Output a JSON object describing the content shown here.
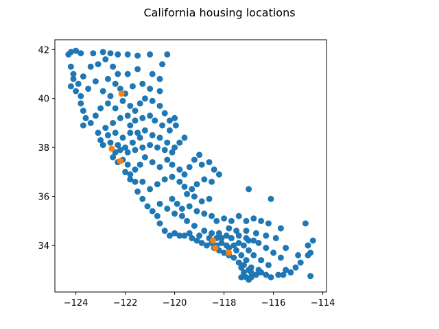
{
  "chart_data": {
    "type": "scatter",
    "title": "California housing locations",
    "xlabel": "",
    "ylabel": "",
    "xlim": [
      -124.85,
      -113.85
    ],
    "ylim": [
      32.1,
      42.4
    ],
    "xticks": [
      -124,
      -122,
      -120,
      -118,
      -116,
      -114
    ],
    "yticks": [
      34,
      36,
      38,
      40,
      42
    ],
    "grid": false,
    "legend": "none",
    "series": [
      {
        "color": "#1f77b4",
        "points": [
          [
            -124.3,
            41.8
          ],
          [
            -124.2,
            41.9
          ],
          [
            -124.0,
            41.95
          ],
          [
            -123.8,
            41.85
          ],
          [
            -123.3,
            41.85
          ],
          [
            -122.9,
            41.9
          ],
          [
            -122.6,
            41.85
          ],
          [
            -122.3,
            41.8
          ],
          [
            -121.9,
            41.8
          ],
          [
            -121.5,
            41.75
          ],
          [
            -121.0,
            41.8
          ],
          [
            -120.3,
            41.8
          ],
          [
            -124.2,
            41.3
          ],
          [
            -124.1,
            41.0
          ],
          [
            -124.1,
            40.8
          ],
          [
            -124.2,
            40.5
          ],
          [
            -124.0,
            40.3
          ],
          [
            -123.8,
            40.1
          ],
          [
            -123.9,
            40.6
          ],
          [
            -123.7,
            40.9
          ],
          [
            -123.4,
            41.3
          ],
          [
            -123.1,
            41.4
          ],
          [
            -122.8,
            41.6
          ],
          [
            -122.5,
            41.3
          ],
          [
            -122.3,
            41.0
          ],
          [
            -122.4,
            40.6
          ],
          [
            -122.2,
            40.4
          ],
          [
            -122.0,
            40.2
          ],
          [
            -121.7,
            40.5
          ],
          [
            -121.3,
            40.6
          ],
          [
            -121.0,
            40.4
          ],
          [
            -120.6,
            40.3
          ],
          [
            -120.5,
            41.4
          ],
          [
            -120.9,
            41.0
          ],
          [
            -120.6,
            40.8
          ],
          [
            -121.5,
            41.2
          ],
          [
            -121.9,
            41.0
          ],
          [
            -122.7,
            40.8
          ],
          [
            -123.2,
            40.7
          ],
          [
            -123.5,
            40.4
          ],
          [
            -122.9,
            40.3
          ],
          [
            -122.6,
            40.1
          ],
          [
            -123.8,
            39.8
          ],
          [
            -123.7,
            39.5
          ],
          [
            -123.6,
            39.2
          ],
          [
            -123.7,
            38.9
          ],
          [
            -123.4,
            39.0
          ],
          [
            -123.2,
            39.3
          ],
          [
            -123.0,
            39.6
          ],
          [
            -122.7,
            39.8
          ],
          [
            -122.4,
            39.6
          ],
          [
            -122.1,
            39.9
          ],
          [
            -121.8,
            39.7
          ],
          [
            -121.6,
            39.5
          ],
          [
            -121.4,
            39.8
          ],
          [
            -121.2,
            40.0
          ],
          [
            -120.9,
            39.9
          ],
          [
            -120.6,
            39.7
          ],
          [
            -120.4,
            39.4
          ],
          [
            -120.2,
            39.1
          ],
          [
            -120.0,
            39.2
          ],
          [
            -119.95,
            38.9
          ],
          [
            -120.2,
            38.7
          ],
          [
            -120.5,
            38.9
          ],
          [
            -120.8,
            39.1
          ],
          [
            -121.0,
            39.3
          ],
          [
            -121.3,
            39.2
          ],
          [
            -121.6,
            39.1
          ],
          [
            -121.9,
            39.3
          ],
          [
            -122.2,
            39.2
          ],
          [
            -122.5,
            39.0
          ],
          [
            -122.8,
            38.8
          ],
          [
            -123.1,
            38.6
          ],
          [
            -123.0,
            38.3
          ],
          [
            -122.7,
            38.5
          ],
          [
            -122.4,
            38.6
          ],
          [
            -122.1,
            38.4
          ],
          [
            -121.8,
            38.6
          ],
          [
            -121.5,
            38.6
          ],
          [
            -121.2,
            38.7
          ],
          [
            -120.9,
            38.5
          ],
          [
            -120.6,
            38.4
          ],
          [
            -120.3,
            38.2
          ],
          [
            -120.0,
            38.0
          ],
          [
            -119.8,
            38.2
          ],
          [
            -119.6,
            38.4
          ],
          [
            -120.1,
            37.8
          ],
          [
            -120.4,
            37.9
          ],
          [
            -120.7,
            38.0
          ],
          [
            -121.0,
            38.1
          ],
          [
            -121.3,
            38.0
          ],
          [
            -121.6,
            37.9
          ],
          [
            -121.9,
            37.8
          ],
          [
            -122.2,
            37.9
          ],
          [
            -122.4,
            37.8
          ],
          [
            -122.3,
            38.1
          ],
          [
            -122.6,
            38.2
          ],
          [
            -121.8,
            38.9
          ],
          [
            -121.4,
            38.4
          ],
          [
            -121.7,
            38.2
          ],
          [
            -122.0,
            38.0
          ],
          [
            -122.9,
            38.1
          ],
          [
            -122.5,
            37.6
          ],
          [
            -122.3,
            37.4
          ],
          [
            -122.1,
            37.5
          ],
          [
            -121.9,
            37.3
          ],
          [
            -122.0,
            37.0
          ],
          [
            -121.8,
            36.9
          ],
          [
            -121.6,
            37.1
          ],
          [
            -121.4,
            37.3
          ],
          [
            -121.2,
            37.6
          ],
          [
            -120.9,
            37.4
          ],
          [
            -120.6,
            37.2
          ],
          [
            -120.3,
            37.5
          ],
          [
            -120.1,
            37.3
          ],
          [
            -119.8,
            37.1
          ],
          [
            -119.6,
            36.9
          ],
          [
            -119.4,
            37.2
          ],
          [
            -119.2,
            37.5
          ],
          [
            -119.0,
            37.7
          ],
          [
            -118.9,
            37.3
          ],
          [
            -118.6,
            37.4
          ],
          [
            -118.4,
            37.1
          ],
          [
            -118.2,
            36.9
          ],
          [
            -118.5,
            36.6
          ],
          [
            -118.8,
            36.7
          ],
          [
            -119.1,
            36.5
          ],
          [
            -119.3,
            36.3
          ],
          [
            -119.6,
            36.4
          ],
          [
            -119.8,
            36.6
          ],
          [
            -120.1,
            36.8
          ],
          [
            -120.4,
            36.7
          ],
          [
            -120.7,
            36.5
          ],
          [
            -121.0,
            36.3
          ],
          [
            -121.3,
            36.6
          ],
          [
            -121.6,
            36.6
          ],
          [
            -121.8,
            36.7
          ],
          [
            -121.5,
            36.2
          ],
          [
            -121.3,
            35.9
          ],
          [
            -121.1,
            35.6
          ],
          [
            -120.9,
            35.4
          ],
          [
            -120.7,
            35.2
          ],
          [
            -120.6,
            34.9
          ],
          [
            -120.4,
            34.6
          ],
          [
            -120.2,
            34.4
          ],
          [
            -120.0,
            34.5
          ],
          [
            -119.8,
            34.4
          ],
          [
            -119.6,
            34.4
          ],
          [
            -119.3,
            34.3
          ],
          [
            -119.1,
            34.2
          ],
          [
            -118.9,
            34.1
          ],
          [
            -118.7,
            34.0
          ],
          [
            -118.5,
            34.1
          ],
          [
            -118.3,
            34.0
          ],
          [
            -118.1,
            34.1
          ],
          [
            -117.9,
            34.0
          ],
          [
            -120.1,
            35.9
          ],
          [
            -119.9,
            35.7
          ],
          [
            -119.7,
            35.5
          ],
          [
            -119.4,
            35.6
          ],
          [
            -119.1,
            35.4
          ],
          [
            -118.8,
            35.3
          ],
          [
            -118.5,
            35.2
          ],
          [
            -118.3,
            35.0
          ],
          [
            -118.0,
            35.1
          ],
          [
            -117.7,
            35.0
          ],
          [
            -117.4,
            35.2
          ],
          [
            -117.1,
            35.0
          ],
          [
            -116.8,
            35.1
          ],
          [
            -116.5,
            35.0
          ],
          [
            -116.2,
            34.9
          ],
          [
            -117.0,
            36.3
          ],
          [
            -116.1,
            35.9
          ],
          [
            -115.7,
            34.7
          ],
          [
            -115.5,
            33.9
          ],
          [
            -115.9,
            34.3
          ],
          [
            -116.3,
            34.4
          ],
          [
            -116.7,
            34.5
          ],
          [
            -117.1,
            34.6
          ],
          [
            -117.5,
            34.6
          ],
          [
            -117.8,
            34.7
          ],
          [
            -118.2,
            34.5
          ],
          [
            -118.5,
            34.5
          ],
          [
            -118.8,
            34.6
          ],
          [
            -119.2,
            34.8
          ],
          [
            -119.5,
            35.0
          ],
          [
            -119.7,
            35.2
          ],
          [
            -120.0,
            35.3
          ],
          [
            -120.3,
            35.5
          ],
          [
            -120.6,
            35.7
          ],
          [
            -118.9,
            35.8
          ],
          [
            -118.6,
            35.9
          ],
          [
            -119.2,
            36.0
          ],
          [
            -119.5,
            36.1
          ],
          [
            -118.4,
            33.9
          ],
          [
            -118.2,
            33.8
          ],
          [
            -118.0,
            33.7
          ],
          [
            -117.8,
            33.6
          ],
          [
            -117.6,
            33.5
          ],
          [
            -117.4,
            33.3
          ],
          [
            -117.3,
            33.1
          ],
          [
            -117.2,
            32.9
          ],
          [
            -117.1,
            32.7
          ],
          [
            -117.0,
            32.6
          ],
          [
            -116.9,
            32.7
          ],
          [
            -116.7,
            32.8
          ],
          [
            -116.5,
            32.9
          ],
          [
            -116.3,
            32.8
          ],
          [
            -116.1,
            32.7
          ],
          [
            -115.8,
            32.8
          ],
          [
            -115.6,
            32.8
          ],
          [
            -115.5,
            33.0
          ],
          [
            -115.3,
            32.9
          ],
          [
            -115.1,
            33.1
          ],
          [
            -114.9,
            33.3
          ],
          [
            -114.6,
            33.6
          ],
          [
            -114.5,
            33.7
          ],
          [
            -114.6,
            34.0
          ],
          [
            -114.4,
            34.2
          ],
          [
            -114.5,
            32.75
          ],
          [
            -114.7,
            34.9
          ],
          [
            -115.0,
            33.6
          ],
          [
            -116.2,
            33.2
          ],
          [
            -116.5,
            33.4
          ],
          [
            -116.8,
            33.6
          ],
          [
            -117.0,
            33.8
          ],
          [
            -117.2,
            34.0
          ],
          [
            -117.4,
            34.1
          ],
          [
            -117.6,
            34.0
          ],
          [
            -117.8,
            33.9
          ],
          [
            -117.0,
            34.2
          ],
          [
            -116.6,
            34.1
          ],
          [
            -116.3,
            33.9
          ],
          [
            -116.0,
            33.7
          ],
          [
            -115.7,
            33.5
          ],
          [
            -117.3,
            33.6
          ],
          [
            -117.5,
            33.8
          ],
          [
            -117.1,
            33.4
          ],
          [
            -116.9,
            33.1
          ],
          [
            -117.2,
            33.2
          ],
          [
            -116.6,
            33.0
          ],
          [
            -117.7,
            34.3
          ],
          [
            -117.9,
            34.4
          ],
          [
            -118.1,
            34.3
          ],
          [
            -118.3,
            34.3
          ],
          [
            -118.6,
            34.3
          ],
          [
            -119.0,
            34.4
          ],
          [
            -119.4,
            34.5
          ],
          [
            -117.4,
            34.4
          ],
          [
            -117.1,
            34.3
          ],
          [
            -116.8,
            34.2
          ],
          [
            -117.0,
            33.0
          ],
          [
            -117.3,
            32.7
          ],
          [
            -116.9,
            32.9
          ]
        ]
      },
      {
        "color": "#ff7f0e",
        "points": [
          [
            -122.15,
            40.2
          ],
          [
            -122.55,
            37.95
          ],
          [
            -122.2,
            37.45
          ],
          [
            -118.45,
            34.2
          ],
          [
            -118.35,
            33.9
          ],
          [
            -117.8,
            33.7
          ]
        ]
      }
    ]
  }
}
